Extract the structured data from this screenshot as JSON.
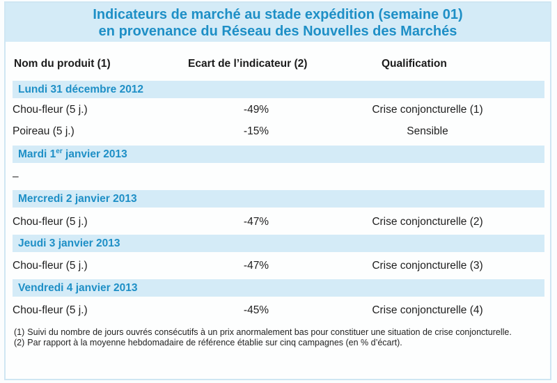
{
  "title": {
    "line1": "Indicateurs de marché au stade expédition (semaine 01)",
    "line2": "en provenance du Réseau des Nouvelles des Marchés"
  },
  "columns": {
    "product": "Nom du produit (1)",
    "ecart": "Ecart de l’indicateur (2)",
    "qualification": "Qualification"
  },
  "sections": [
    {
      "date": "Lundi 31 décembre 2012",
      "rows": [
        {
          "product": "Chou-fleur (5 j.)",
          "ecart": "-49%",
          "qualification": "Crise conjoncturelle (1)"
        },
        {
          "product": "Poireau (5 j.)",
          "ecart": "-15%",
          "qualification": "Sensible"
        }
      ]
    },
    {
      "date_prefix": "Mardi 1",
      "date_sup": "er",
      "date_suffix": " janvier 2013",
      "rows": [
        {
          "product": "–",
          "ecart": "",
          "qualification": ""
        }
      ]
    },
    {
      "date": "Mercredi 2 janvier 2013",
      "rows": [
        {
          "product": "Chou-fleur (5 j.)",
          "ecart": "-47%",
          "qualification": "Crise conjoncturelle (2)"
        }
      ]
    },
    {
      "date": "Jeudi 3 janvier 2013",
      "rows": [
        {
          "product": "Chou-fleur (5 j.)",
          "ecart": "-47%",
          "qualification": "Crise conjoncturelle (3)"
        }
      ]
    },
    {
      "date": "Vendredi 4 janvier 2013",
      "rows": [
        {
          "product": "Chou-fleur (5 j.)",
          "ecart": "-45%",
          "qualification": "Crise conjoncturelle (4)"
        }
      ]
    }
  ],
  "notes": [
    {
      "num": "(1)",
      "text": "Suivi du nombre de jours ouvrés consécutifs à un prix anormalement bas pour constituer une situation de crise conjoncturelle."
    },
    {
      "num": "(2)",
      "text": "Par rapport à la moyenne hebdomadaire de référence établie sur cinq campagnes (en % d’écart)."
    }
  ],
  "colors": {
    "accent": "#1e8fc6",
    "band": "#d4ebf7"
  }
}
